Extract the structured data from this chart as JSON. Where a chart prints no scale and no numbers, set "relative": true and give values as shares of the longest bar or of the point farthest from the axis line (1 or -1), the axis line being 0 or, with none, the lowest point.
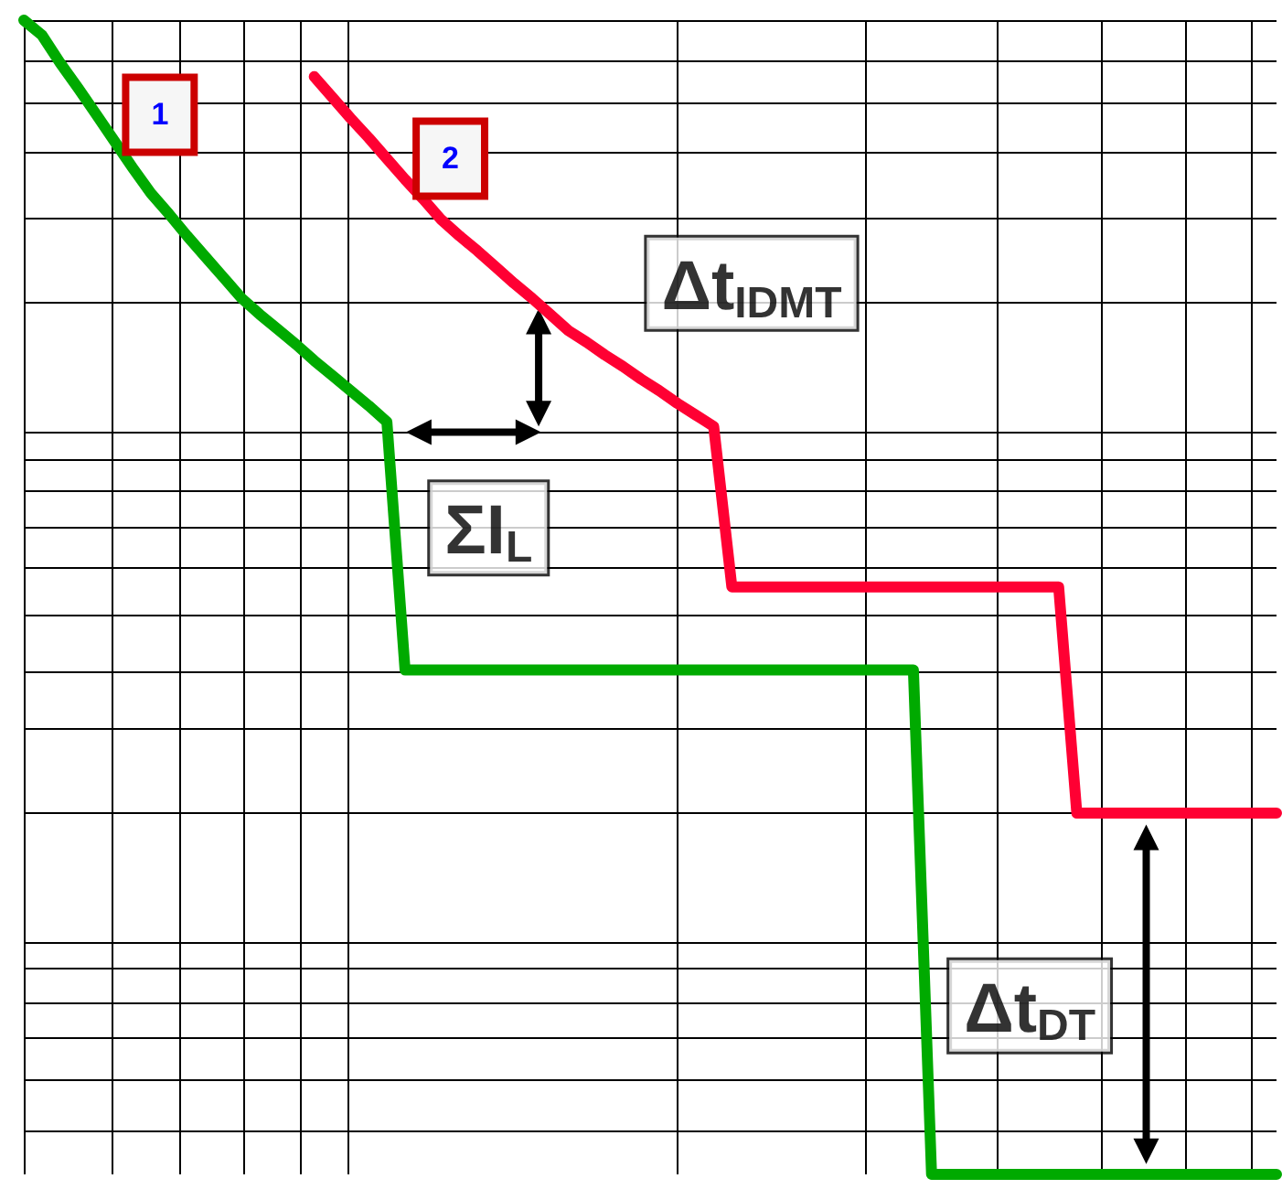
{
  "chart_data": {
    "type": "line",
    "relative": true,
    "categories": [
      null,
      null,
      null,
      null,
      null,
      null,
      null,
      null,
      null,
      null,
      null,
      null,
      null,
      null,
      null,
      null,
      null,
      null,
      null,
      null,
      null,
      null,
      null,
      null,
      null,
      null,
      null,
      null,
      null,
      null,
      null,
      null,
      null,
      null,
      null,
      null,
      null,
      null,
      null,
      null,
      null,
      null,
      null,
      null,
      null,
      null,
      null,
      null,
      null,
      null,
      null,
      null,
      null,
      null,
      null,
      null,
      null,
      null,
      null,
      null,
      null,
      null,
      null,
      null,
      null,
      null,
      null,
      null,
      null,
      null
    ],
    "grid": true,
    "legend": false,
    "marker": "none",
    "line_style": "solid",
    "series": [
      {
        "name": "1",
        "color": "#00aa00",
        "values": [
          1,
          0.987,
          0.963,
          0.941,
          0.918,
          0.895,
          0.872,
          0.85,
          0.832,
          0.813,
          0.795,
          0.777,
          0.759,
          0.745,
          0.732,
          0.719,
          0.705,
          0.692,
          0.679,
          0.666,
          0.652,
          0.437,
          0.437,
          0.437,
          0.437,
          0.437,
          0.437,
          0.437,
          0.437,
          0.437,
          0.437,
          0.437,
          0.437,
          0.437,
          0.437,
          0.437,
          0.437,
          0.437,
          0.437,
          0.437,
          0.437,
          0.437,
          0.437,
          0.437,
          0.437,
          0.437,
          0.437,
          0.437,
          0.437,
          0.437,
          0,
          0,
          0,
          0,
          0,
          0,
          0,
          0,
          0,
          0,
          0,
          0,
          0,
          0,
          0,
          0,
          0,
          0,
          0,
          0
        ]
      },
      {
        "name": "2",
        "color": "#ff0033",
        "values": [
          null,
          null,
          null,
          null,
          null,
          null,
          null,
          null,
          null,
          null,
          null,
          null,
          null,
          null,
          null,
          null,
          0.951,
          0.933,
          0.915,
          0.898,
          0.88,
          0.862,
          0.845,
          0.827,
          0.813,
          0.8,
          0.786,
          0.772,
          0.759,
          0.745,
          0.731,
          0.721,
          0.71,
          0.7,
          0.689,
          0.679,
          0.668,
          0.658,
          0.648,
          0.509,
          0.509,
          0.509,
          0.509,
          0.509,
          0.509,
          0.509,
          0.509,
          0.509,
          0.509,
          0.509,
          0.509,
          0.509,
          0.509,
          0.509,
          0.509,
          0.509,
          0.509,
          0.509,
          0.313,
          0.313,
          0.313,
          0.313,
          0.313,
          0.313,
          0.313,
          0.313,
          0.313,
          0.313,
          0.313,
          0.313
        ]
      }
    ],
    "annotations": [
      "Δt$_{IDMT}$",
      "ΣI$_{L}$",
      "Δt$_{DT}$"
    ]
  }
}
